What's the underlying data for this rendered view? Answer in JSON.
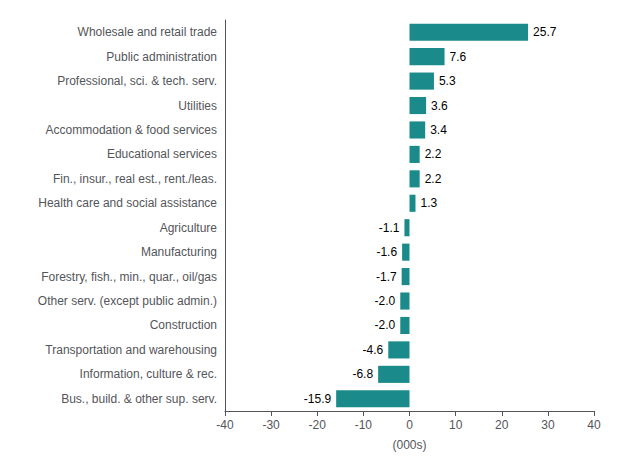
{
  "chart_data": {
    "type": "bar",
    "orientation": "horizontal",
    "xlabel": "(000s)",
    "categories": [
      "Bus., build. & other sup. serv.",
      "Information, culture & rec.",
      "Transportation and warehousing",
      "Construction",
      "Other serv. (except public admin.)",
      "Forestry, fish., min., quar., oil/gas",
      "Manufacturing",
      "Agriculture",
      "Health care and social assistance",
      "Fin., insur., real est., rent./leas.",
      "Educational services",
      "Accommodation & food services",
      "Utilities",
      "Professional, sci. & tech. serv.",
      "Public administration",
      "Wholesale and retail trade"
    ],
    "values": [
      -15.9,
      -6.8,
      -4.6,
      -2.0,
      -2.0,
      -1.7,
      -1.6,
      -1.1,
      1.3,
      2.2,
      2.2,
      3.4,
      3.6,
      5.3,
      7.6,
      25.7
    ],
    "value_labels": [
      "-15.9",
      "-6.8",
      "-4.6",
      "-2.0",
      "-2.0",
      "-1.7",
      "-1.6",
      "-1.1",
      "1.3",
      "2.2",
      "2.2",
      "3.4",
      "3.6",
      "5.3",
      "7.6",
      "25.7"
    ],
    "data_labels": true,
    "color": "#1a8a8a",
    "xlim": [
      -40,
      40
    ],
    "xticks": [
      -40,
      -30,
      -20,
      -10,
      0,
      10,
      20,
      30,
      40
    ],
    "grid": false
  }
}
